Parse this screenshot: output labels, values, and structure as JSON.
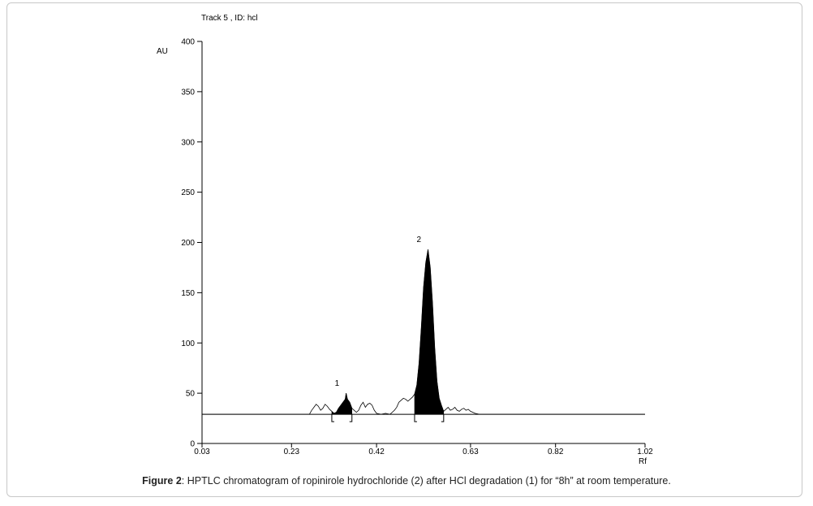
{
  "caption": {
    "label": "Figure 2",
    "text": ": HPTLC chromatogram of ropinirole hydrochloride (2) after HCl degradation (1) for “8h” at room temperature."
  },
  "chart_data": {
    "type": "line",
    "title": "Track  5 , ID: hcl",
    "xlabel": "Rf",
    "ylabel": "AU",
    "xlim": [
      0.03,
      1.02
    ],
    "ylim": [
      0,
      400
    ],
    "x_ticks": [
      "0.03",
      "0.23",
      "0.42",
      "0.63",
      "0.82",
      "1.02"
    ],
    "y_ticks": [
      "0",
      "50",
      "100",
      "150",
      "200",
      "250",
      "300",
      "350",
      "400"
    ],
    "baseline": 29,
    "grid": false,
    "series": [
      {
        "values": [
          [
            0.03,
            29
          ],
          [
            0.25,
            29
          ],
          [
            0.27,
            29
          ],
          [
            0.275,
            33
          ],
          [
            0.28,
            36
          ],
          [
            0.285,
            39
          ],
          [
            0.29,
            37
          ],
          [
            0.295,
            33
          ],
          [
            0.3,
            35
          ],
          [
            0.305,
            39
          ],
          [
            0.31,
            37
          ],
          [
            0.315,
            34
          ],
          [
            0.32,
            32
          ],
          [
            0.325,
            30
          ],
          [
            0.33,
            31
          ],
          [
            0.335,
            35
          ],
          [
            0.34,
            38
          ],
          [
            0.345,
            41
          ],
          [
            0.35,
            44
          ],
          [
            0.352,
            50
          ],
          [
            0.355,
            44
          ],
          [
            0.36,
            41
          ],
          [
            0.365,
            35
          ],
          [
            0.37,
            33
          ],
          [
            0.375,
            31
          ],
          [
            0.38,
            33
          ],
          [
            0.385,
            38
          ],
          [
            0.39,
            41
          ],
          [
            0.395,
            36
          ],
          [
            0.4,
            39
          ],
          [
            0.405,
            40
          ],
          [
            0.41,
            38
          ],
          [
            0.415,
            33
          ],
          [
            0.42,
            30
          ],
          [
            0.43,
            29
          ],
          [
            0.44,
            30
          ],
          [
            0.45,
            29
          ],
          [
            0.46,
            33
          ],
          [
            0.465,
            36
          ],
          [
            0.47,
            41
          ],
          [
            0.475,
            43
          ],
          [
            0.48,
            45
          ],
          [
            0.485,
            44
          ],
          [
            0.49,
            42
          ],
          [
            0.495,
            44
          ],
          [
            0.5,
            46
          ],
          [
            0.505,
            49
          ],
          [
            0.51,
            58
          ],
          [
            0.515,
            80
          ],
          [
            0.52,
            115
          ],
          [
            0.525,
            155
          ],
          [
            0.53,
            180
          ],
          [
            0.535,
            193
          ],
          [
            0.54,
            175
          ],
          [
            0.545,
            140
          ],
          [
            0.55,
            95
          ],
          [
            0.555,
            62
          ],
          [
            0.56,
            45
          ],
          [
            0.565,
            38
          ],
          [
            0.57,
            32
          ],
          [
            0.575,
            34
          ],
          [
            0.58,
            36
          ],
          [
            0.585,
            33
          ],
          [
            0.59,
            34
          ],
          [
            0.595,
            36
          ],
          [
            0.6,
            33
          ],
          [
            0.605,
            32
          ],
          [
            0.61,
            34
          ],
          [
            0.615,
            35
          ],
          [
            0.62,
            33
          ],
          [
            0.625,
            34
          ],
          [
            0.63,
            32
          ],
          [
            0.64,
            30
          ],
          [
            0.65,
            29
          ],
          [
            1.02,
            29
          ]
        ]
      }
    ],
    "peaks": [
      {
        "label": "1",
        "start": 0.32,
        "end": 0.365,
        "max_rf": 0.352,
        "max_au": 50
      },
      {
        "label": "2",
        "start": 0.505,
        "end": 0.57,
        "max_rf": 0.535,
        "max_au": 193
      }
    ]
  }
}
